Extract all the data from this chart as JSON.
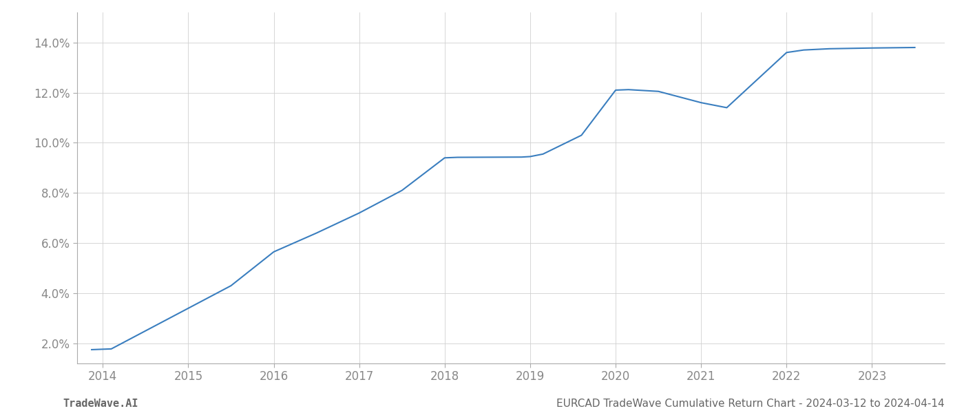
{
  "x_values": [
    2013.87,
    2014.1,
    2014.25,
    2015.0,
    2015.5,
    2016.0,
    2016.5,
    2017.0,
    2017.5,
    2018.0,
    2018.15,
    2018.9,
    2019.0,
    2019.15,
    2019.6,
    2020.0,
    2020.15,
    2020.5,
    2021.0,
    2021.3,
    2022.0,
    2022.2,
    2022.5,
    2023.0,
    2023.5
  ],
  "y_values": [
    1.75,
    1.78,
    2.05,
    3.4,
    4.3,
    5.65,
    6.4,
    7.2,
    8.1,
    9.4,
    9.42,
    9.43,
    9.45,
    9.55,
    10.3,
    12.1,
    12.12,
    12.05,
    11.6,
    11.4,
    13.6,
    13.7,
    13.75,
    13.78,
    13.8
  ],
  "line_color": "#3a7ebf",
  "line_width": 1.5,
  "background_color": "#ffffff",
  "grid_color": "#d0d0d0",
  "tick_color": "#888888",
  "spine_color": "#aaaaaa",
  "ylim": [
    1.2,
    15.2
  ],
  "xlim": [
    2013.7,
    2023.85
  ],
  "yticks": [
    2.0,
    4.0,
    6.0,
    8.0,
    10.0,
    12.0,
    14.0
  ],
  "xticks": [
    2014,
    2015,
    2016,
    2017,
    2018,
    2019,
    2020,
    2021,
    2022,
    2023
  ],
  "footer_left": "TradeWave.AI",
  "footer_right": "EURCAD TradeWave Cumulative Return Chart - 2024-03-12 to 2024-04-14",
  "footer_color": "#666666",
  "footer_fontsize": 11,
  "tick_fontsize": 12
}
